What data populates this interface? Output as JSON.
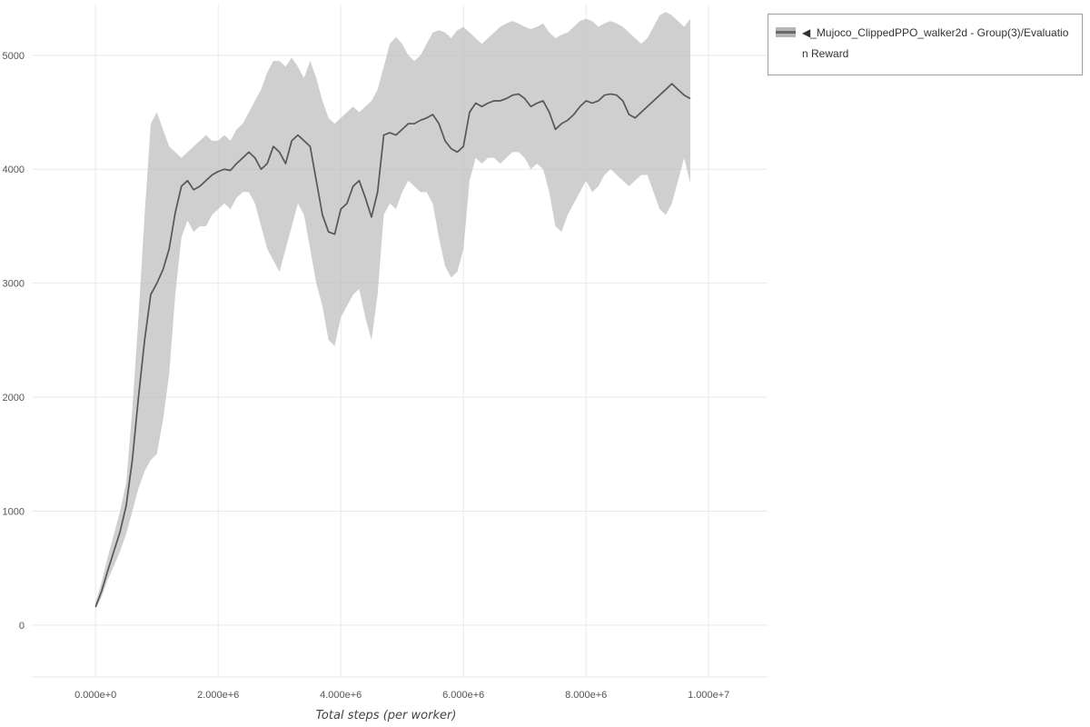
{
  "legend": {
    "label": "◀_Mujoco_ClippedPPO_walker2d - Group(3)/Evaluation Reward"
  },
  "chart_data": {
    "type": "line",
    "title": "",
    "xlabel": "Total steps (per worker)",
    "ylabel": "",
    "legend_position": "top-right-outside",
    "grid": true,
    "xlim": [
      -1040000,
      10960000
    ],
    "ylim": [
      -455,
      5445
    ],
    "x_unit": 1000000,
    "x_ticks": [
      {
        "value": 0,
        "label": "0.000e+0"
      },
      {
        "value": 2000000,
        "label": "2.000e+6"
      },
      {
        "value": 4000000,
        "label": "4.000e+6"
      },
      {
        "value": 6000000,
        "label": "6.000e+6"
      },
      {
        "value": 8000000,
        "label": "8.000e+6"
      },
      {
        "value": 10000000,
        "label": "1.000e+7"
      }
    ],
    "y_ticks": [
      0,
      1000,
      2000,
      3000,
      4000,
      5000
    ],
    "colors": {
      "line": "#565656",
      "band": "#bdbdbd",
      "band_opacity": 0.72,
      "grid": "#e9e9e9",
      "tick_text": "#555555"
    },
    "series": [
      {
        "name": "◀_Mujoco_ClippedPPO_walker2d - Group(3)/Evaluation Reward",
        "x": [
          0,
          0.1,
          0.2,
          0.3,
          0.4,
          0.5,
          0.6,
          0.7,
          0.8,
          0.9,
          1,
          1.1,
          1.2,
          1.3,
          1.4,
          1.5,
          1.6,
          1.7,
          1.8,
          1.9,
          2,
          2.1,
          2.2,
          2.3,
          2.4,
          2.5,
          2.6,
          2.7,
          2.8,
          2.9,
          3,
          3.1,
          3.2,
          3.3,
          3.4,
          3.5,
          3.6,
          3.7,
          3.8,
          3.9,
          4,
          4.1,
          4.2,
          4.3,
          4.4,
          4.5,
          4.6,
          4.7,
          4.8,
          4.9,
          5,
          5.1,
          5.2,
          5.3,
          5.4,
          5.5,
          5.6,
          5.7,
          5.8,
          5.9,
          6,
          6.1,
          6.2,
          6.3,
          6.4,
          6.5,
          6.6,
          6.7,
          6.8,
          6.9,
          7,
          7.1,
          7.2,
          7.3,
          7.4,
          7.5,
          7.6,
          7.7,
          7.8,
          7.9,
          8,
          8.1,
          8.2,
          8.3,
          8.4,
          8.5,
          8.6,
          8.7,
          8.8,
          8.9,
          9,
          9.1,
          9.2,
          9.3,
          9.4,
          9.5,
          9.6,
          9.7
        ],
        "mean": [
          160,
          300,
          480,
          650,
          820,
          1050,
          1450,
          2000,
          2500,
          2900,
          3000,
          3120,
          3300,
          3620,
          3850,
          3900,
          3820,
          3850,
          3900,
          3950,
          3980,
          4000,
          3990,
          4050,
          4100,
          4150,
          4100,
          4000,
          4050,
          4200,
          4150,
          4050,
          4250,
          4300,
          4250,
          4200,
          3900,
          3600,
          3450,
          3430,
          3650,
          3700,
          3850,
          3900,
          3750,
          3580,
          3800,
          4300,
          4320,
          4300,
          4350,
          4400,
          4400,
          4430,
          4450,
          4480,
          4400,
          4250,
          4180,
          4150,
          4200,
          4500,
          4580,
          4550,
          4580,
          4600,
          4600,
          4620,
          4650,
          4660,
          4620,
          4550,
          4580,
          4600,
          4500,
          4350,
          4400,
          4430,
          4480,
          4550,
          4600,
          4580,
          4600,
          4650,
          4660,
          4650,
          4600,
          4480,
          4450,
          4500,
          4550,
          4600,
          4650,
          4700,
          4750,
          4700,
          4650,
          4620
        ],
        "lower": [
          140,
          250,
          400,
          520,
          650,
          800,
          1000,
          1200,
          1350,
          1450,
          1500,
          1800,
          2200,
          2900,
          3400,
          3550,
          3450,
          3500,
          3500,
          3600,
          3650,
          3700,
          3650,
          3750,
          3800,
          3800,
          3700,
          3500,
          3300,
          3200,
          3100,
          3300,
          3500,
          3700,
          3600,
          3300,
          3000,
          2800,
          2500,
          2450,
          2700,
          2800,
          2900,
          2950,
          2700,
          2500,
          2900,
          3600,
          3700,
          3650,
          3800,
          3900,
          3850,
          3800,
          3800,
          3700,
          3400,
          3150,
          3050,
          3100,
          3300,
          3900,
          4100,
          4050,
          4100,
          4100,
          4050,
          4100,
          4150,
          4150,
          4100,
          4000,
          4050,
          4000,
          3800,
          3500,
          3450,
          3600,
          3700,
          3800,
          3900,
          3800,
          3850,
          3950,
          4000,
          3950,
          3900,
          3850,
          3900,
          3950,
          3950,
          3800,
          3650,
          3600,
          3700,
          3900,
          4100,
          3880
        ],
        "upper": [
          200,
          380,
          600,
          800,
          1000,
          1250,
          1900,
          2700,
          3600,
          4400,
          4500,
          4350,
          4200,
          4150,
          4100,
          4150,
          4200,
          4250,
          4300,
          4250,
          4250,
          4300,
          4250,
          4350,
          4400,
          4500,
          4600,
          4700,
          4850,
          4950,
          4950,
          4900,
          4980,
          4900,
          4800,
          4950,
          4800,
          4600,
          4450,
          4400,
          4450,
          4500,
          4550,
          4500,
          4550,
          4600,
          4700,
          4900,
          5100,
          5160,
          5100,
          5000,
          4950,
          5000,
          5100,
          5200,
          5220,
          5200,
          5150,
          5220,
          5250,
          5200,
          5150,
          5100,
          5150,
          5200,
          5250,
          5280,
          5300,
          5280,
          5250,
          5230,
          5250,
          5280,
          5200,
          5150,
          5180,
          5200,
          5250,
          5300,
          5320,
          5300,
          5250,
          5280,
          5300,
          5280,
          5250,
          5200,
          5150,
          5100,
          5150,
          5250,
          5350,
          5380,
          5350,
          5300,
          5250,
          5320
        ]
      }
    ]
  }
}
